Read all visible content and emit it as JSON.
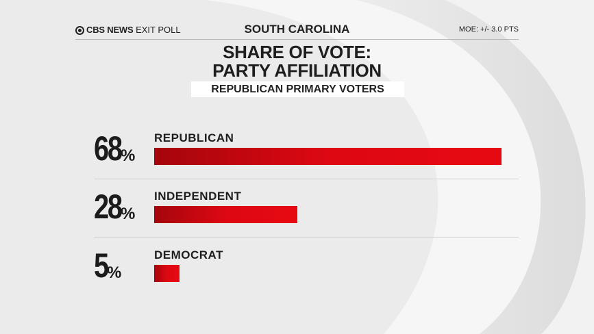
{
  "header": {
    "brand_cbs": "CBS NEWS",
    "brand_rest": "EXIT POLL",
    "state": "SOUTH CAROLINA",
    "moe": "MOE: +/- 3.0 PTS"
  },
  "chart_data": {
    "type": "bar",
    "orientation": "horizontal",
    "title_line1": "SHARE OF VOTE:",
    "title_line2": "PARTY AFFILIATION",
    "subtitle": "REPUBLICAN PRIMARY VOTERS",
    "categories": [
      "REPUBLICAN",
      "INDEPENDENT",
      "DEMOCRAT"
    ],
    "values": [
      68,
      28,
      5
    ],
    "value_labels": [
      "68",
      "28",
      "5"
    ],
    "unit": "%",
    "bar_color": "#e70912",
    "xlim": [
      0,
      68
    ]
  }
}
